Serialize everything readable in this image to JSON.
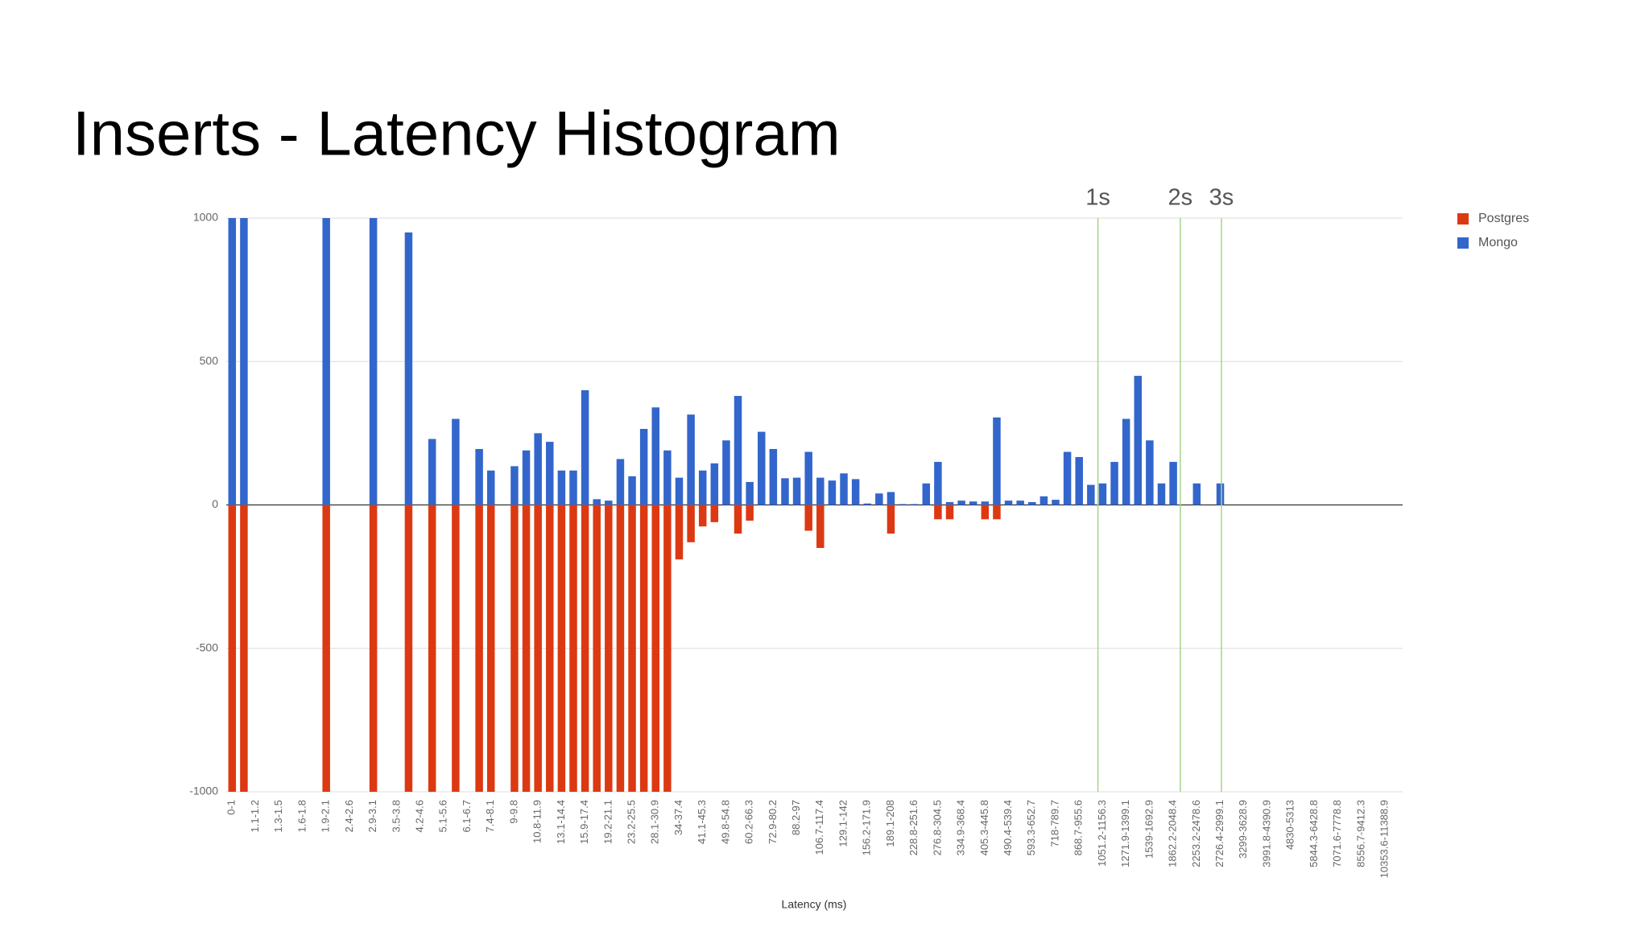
{
  "chart_data": {
    "type": "bar",
    "title": "Inserts - Latency Histogram",
    "x_label": "Latency (ms)",
    "annotations": [
      "1s",
      "2s",
      "3s"
    ],
    "categories": [
      "0-1",
      null,
      "1.1-1.2",
      null,
      "1.3-1.5",
      null,
      "1.6-1.8",
      null,
      "1.9-2.1",
      null,
      "2.4-2.6",
      null,
      "2.9-3.1",
      null,
      "3.5-3.8",
      null,
      "4.2-4.6",
      null,
      "5.1-5.6",
      null,
      "6.1-6.7",
      null,
      "7.4-8.1",
      null,
      "9-9.8",
      null,
      "10.8-11.9",
      null,
      "13.1-14.4",
      null,
      "15.9-17.4",
      null,
      "19.2-21.1",
      null,
      "23.2-25.5",
      null,
      "28.1-30.9",
      null,
      "34-37.4",
      null,
      "41.1-45.3",
      null,
      "49.8-54.8",
      null,
      "60.2-66.3",
      null,
      "72.9-80.2",
      null,
      "88.2-97",
      null,
      "106.7-117.4",
      null,
      "129.1-142",
      null,
      "156.2-171.9",
      null,
      "189.1-208",
      null,
      "228.8-251.6",
      null,
      "276.8-304.5",
      null,
      "334.9-368.4",
      null,
      "405.3-445.8",
      null,
      "490.4-539.4",
      null,
      "593.3-652.7",
      null,
      "718-789.7",
      null,
      "868.7-955.6",
      null,
      "1051.2-1156.3",
      null,
      "1271.9-1399.1",
      null,
      "1539-1692.9",
      null,
      "1862.2-2048.4",
      null,
      "2253.2-2478.6",
      null,
      "2726.4-2999.1",
      null,
      "3299-3628.9",
      null,
      "3991.8-4390.9",
      null,
      "4830-5313",
      null,
      "5844.3-6428.8",
      null,
      "7071.6-7778.8",
      null,
      "8556.7-9412.3",
      null,
      "10353.6-11388.9",
      null
    ],
    "series": [
      {
        "name": "Postgres",
        "color": "#dc3912",
        "values": [
          -1000,
          -1000,
          0,
          0,
          0,
          0,
          0,
          0,
          -1000,
          0,
          0,
          0,
          -1000,
          0,
          0,
          -1000,
          0,
          -1000,
          0,
          -1000,
          0,
          -1000,
          -1000,
          0,
          -1000,
          -1000,
          -1000,
          -1000,
          -1000,
          -1000,
          -1000,
          -1000,
          -1000,
          -1000,
          -1000,
          -1000,
          -1000,
          -1000,
          -190,
          -130,
          -75,
          -60,
          0,
          -100,
          -55,
          0,
          0,
          0,
          0,
          -90,
          -150,
          0,
          0,
          0,
          0,
          0,
          -100,
          0,
          0,
          0,
          -50,
          -50,
          0,
          0,
          -50,
          -50,
          0,
          0,
          0,
          0,
          0,
          0,
          0,
          0,
          0,
          0,
          0,
          0,
          0,
          0,
          0,
          0,
          0,
          0,
          0,
          0,
          0,
          0,
          0,
          0,
          0,
          0,
          0,
          0,
          0,
          0,
          0,
          0,
          0,
          0
        ]
      },
      {
        "name": "Mongo",
        "color": "#3366cc",
        "values": [
          1000,
          1000,
          0,
          0,
          0,
          0,
          0,
          0,
          1000,
          0,
          0,
          0,
          1000,
          0,
          0,
          950,
          0,
          230,
          0,
          300,
          0,
          195,
          120,
          0,
          135,
          190,
          250,
          220,
          120,
          120,
          400,
          20,
          15,
          160,
          100,
          265,
          340,
          190,
          95,
          315,
          120,
          145,
          225,
          380,
          80,
          255,
          195,
          93,
          95,
          185,
          95,
          85,
          110,
          90,
          5,
          40,
          45,
          3,
          3,
          75,
          150,
          10,
          15,
          12,
          12,
          305,
          15,
          15,
          10,
          30,
          18,
          185,
          167,
          70,
          75,
          150,
          300,
          450,
          225,
          75,
          150,
          0,
          75,
          0,
          75,
          0,
          0,
          0,
          0,
          0,
          0,
          0,
          0,
          0,
          0,
          0,
          0,
          0,
          0,
          0
        ]
      }
    ],
    "ylim": [
      -1000,
      1000
    ],
    "yticks": [
      -1000,
      -500,
      0,
      500,
      1000
    ],
    "grid": true,
    "legend": "right"
  }
}
